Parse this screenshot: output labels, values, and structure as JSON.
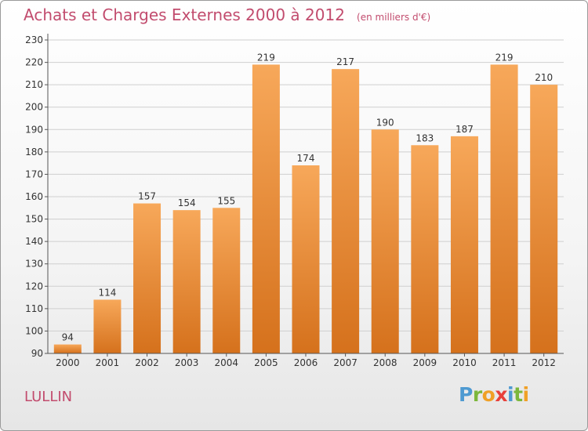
{
  "header": {
    "title": "Achats et Charges Externes 2000 à 2012",
    "unit": "(en milliers d'€)"
  },
  "footer": {
    "commune": "LULLIN",
    "brand": "Proxiti",
    "brand_letters": [
      {
        "ch": "P",
        "color": "#4e9ad1"
      },
      {
        "ch": "r",
        "color": "#7cb73b"
      },
      {
        "ch": "o",
        "color": "#f0a026"
      },
      {
        "ch": "x",
        "color": "#e8403a"
      },
      {
        "ch": "i",
        "color": "#4e9ad1"
      },
      {
        "ch": "t",
        "color": "#7cb73b"
      },
      {
        "ch": "i",
        "color": "#f0a026"
      }
    ]
  },
  "colors": {
    "bar_top": "#f7a85a",
    "bar_bottom": "#d5711c",
    "grid": "#cfcfcf",
    "title": "#c24c6e",
    "text": "#333333"
  },
  "chart_data": {
    "type": "bar",
    "title": "Achats et Charges Externes 2000 à 2012",
    "subtitle": "(en milliers d'€)",
    "categories": [
      "2000",
      "2001",
      "2002",
      "2003",
      "2004",
      "2005",
      "2006",
      "2007",
      "2008",
      "2009",
      "2010",
      "2011",
      "2012"
    ],
    "values": [
      94,
      114,
      157,
      154,
      155,
      219,
      174,
      217,
      190,
      183,
      187,
      219,
      210
    ],
    "yticks": [
      90,
      100,
      110,
      120,
      130,
      140,
      150,
      160,
      170,
      180,
      190,
      200,
      210,
      220,
      230
    ],
    "ylim": [
      90,
      230
    ],
    "grid": true,
    "xlabel": "",
    "ylabel": ""
  }
}
